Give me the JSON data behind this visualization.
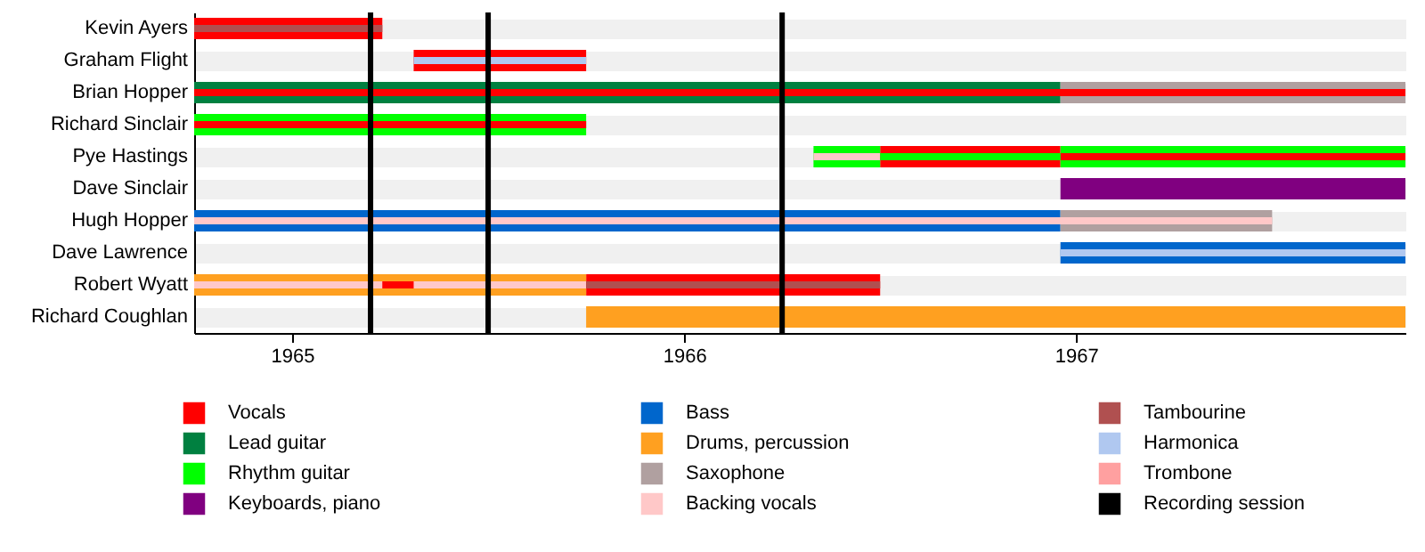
{
  "chart_data": {
    "type": "bar",
    "orientation": "horizontal",
    "categories": [
      "Kevin Ayers",
      "Graham Flight",
      "Brian Hopper",
      "Richard Sinclair",
      "Pye Hastings",
      "Dave Sinclair",
      "Hugh Hopper",
      "Dave Lawrence",
      "Robert Wyatt",
      "Richard Coughlan"
    ],
    "series": [
      {
        "name": "Vocals",
        "color": "#ff0000",
        "base": [
          1964.75,
          1965.31,
          null,
          null,
          1966.5,
          null,
          null,
          null,
          1965.75,
          null
        ],
        "values": [
          0.48,
          0.44,
          null,
          null,
          0.46,
          null,
          null,
          null,
          0.75,
          null
        ]
      },
      {
        "name": "Lead guitar",
        "color": "#008040",
        "base": [
          null,
          null,
          1964.75,
          null,
          null,
          null,
          null,
          null,
          null,
          null
        ],
        "values": [
          null,
          null,
          2.21,
          null,
          null,
          null,
          null,
          null,
          null,
          null
        ]
      },
      {
        "name": "Rhythm guitar",
        "color": "#00ff00",
        "base": [
          null,
          null,
          null,
          1964.75,
          1966.33,
          null,
          null,
          null,
          null,
          null
        ],
        "values": [
          null,
          null,
          null,
          1.0,
          0.17,
          null,
          null,
          null,
          null,
          null
        ]
      },
      {
        "name": "Keyboards, piano",
        "color": "#800080",
        "base": [
          null,
          null,
          null,
          null,
          null,
          1966.96,
          null,
          null,
          null,
          null
        ],
        "values": [
          null,
          null,
          null,
          null,
          null,
          0.88,
          null,
          null,
          null,
          null
        ]
      },
      {
        "name": "Bass",
        "color": "#0066cc",
        "base": [
          null,
          null,
          null,
          null,
          null,
          null,
          1964.75,
          1966.96,
          null,
          null
        ],
        "values": [
          null,
          null,
          null,
          null,
          null,
          null,
          2.21,
          0.88,
          null,
          null
        ]
      },
      {
        "name": "Drums, percussion",
        "color": "#ffa020",
        "base": [
          null,
          null,
          null,
          null,
          null,
          null,
          null,
          null,
          1964.75,
          1965.75
        ],
        "values": [
          null,
          null,
          null,
          null,
          null,
          null,
          null,
          null,
          1.0,
          2.09
        ]
      },
      {
        "name": "Saxophone",
        "color": "#b0a0a0",
        "base": [
          null,
          null,
          1966.96,
          null,
          null,
          null,
          1966.96,
          null,
          null,
          null
        ],
        "values": [
          null,
          null,
          0.88,
          null,
          null,
          null,
          0.54,
          null,
          null,
          null
        ]
      },
      {
        "color": "#00ff00",
        "base": [
          null,
          null,
          null,
          null,
          1966.96,
          null,
          null,
          null,
          null,
          null
        ],
        "values": [
          null,
          null,
          null,
          null,
          0.88,
          null,
          null,
          null,
          null,
          null
        ]
      },
      {
        "name": "Backing vocals",
        "color": "#ffc8c8",
        "base": [
          null,
          null,
          null,
          null,
          1966.33,
          null,
          1964.75,
          null,
          1964.75,
          null
        ],
        "values": [
          null,
          null,
          null,
          null,
          0.17,
          null,
          2.75,
          null,
          1.0,
          null
        ]
      },
      {
        "name": "Tambourine",
        "color": "#b05050",
        "base": [
          1964.75,
          null,
          null,
          null,
          null,
          null,
          null,
          null,
          1965.75,
          null
        ],
        "values": [
          0.48,
          null,
          null,
          null,
          null,
          null,
          null,
          null,
          0.75,
          null
        ]
      },
      {
        "name": "Harmonica",
        "color": "#b0c8f0",
        "base": [
          null,
          1965.31,
          null,
          null,
          null,
          null,
          null,
          1966.96,
          null,
          null
        ],
        "values": [
          null,
          0.44,
          null,
          null,
          null,
          null,
          null,
          0.88,
          null,
          null
        ]
      },
      {
        "name": "Trombone",
        "color": "#ffa0a0",
        "base": [
          null,
          null,
          null,
          null,
          null,
          null,
          null,
          null,
          null,
          null
        ],
        "values": [
          null,
          null,
          null,
          null,
          null,
          null,
          null,
          null,
          null,
          null
        ]
      },
      {
        "color": "#ff0000",
        "base": [
          null,
          null,
          1964.75,
          1964.75,
          1966.96,
          null,
          null,
          null,
          1965.23,
          null
        ],
        "values": [
          null,
          null,
          3.09,
          1.0,
          0.88,
          null,
          null,
          null,
          0.08,
          null
        ]
      },
      {
        "color": "#00ff00",
        "base": [
          null,
          null,
          null,
          null,
          1966.5,
          null,
          null,
          null,
          null,
          null
        ],
        "values": [
          null,
          null,
          null,
          null,
          0.46,
          null,
          null,
          null,
          null,
          null
        ]
      }
    ],
    "xlim": [
      1964.75,
      1967.84
    ],
    "xticks": [
      1965,
      1966,
      1967
    ],
    "grid": "y",
    "legend": "bottom",
    "ref_lines": [
      {
        "axis": "x",
        "value": 1965.2,
        "label": "Recording session",
        "color": "#000000"
      },
      {
        "axis": "x",
        "value": 1965.5,
        "color": "#000000"
      },
      {
        "axis": "x",
        "value": 1966.25,
        "color": "#000000"
      }
    ]
  }
}
